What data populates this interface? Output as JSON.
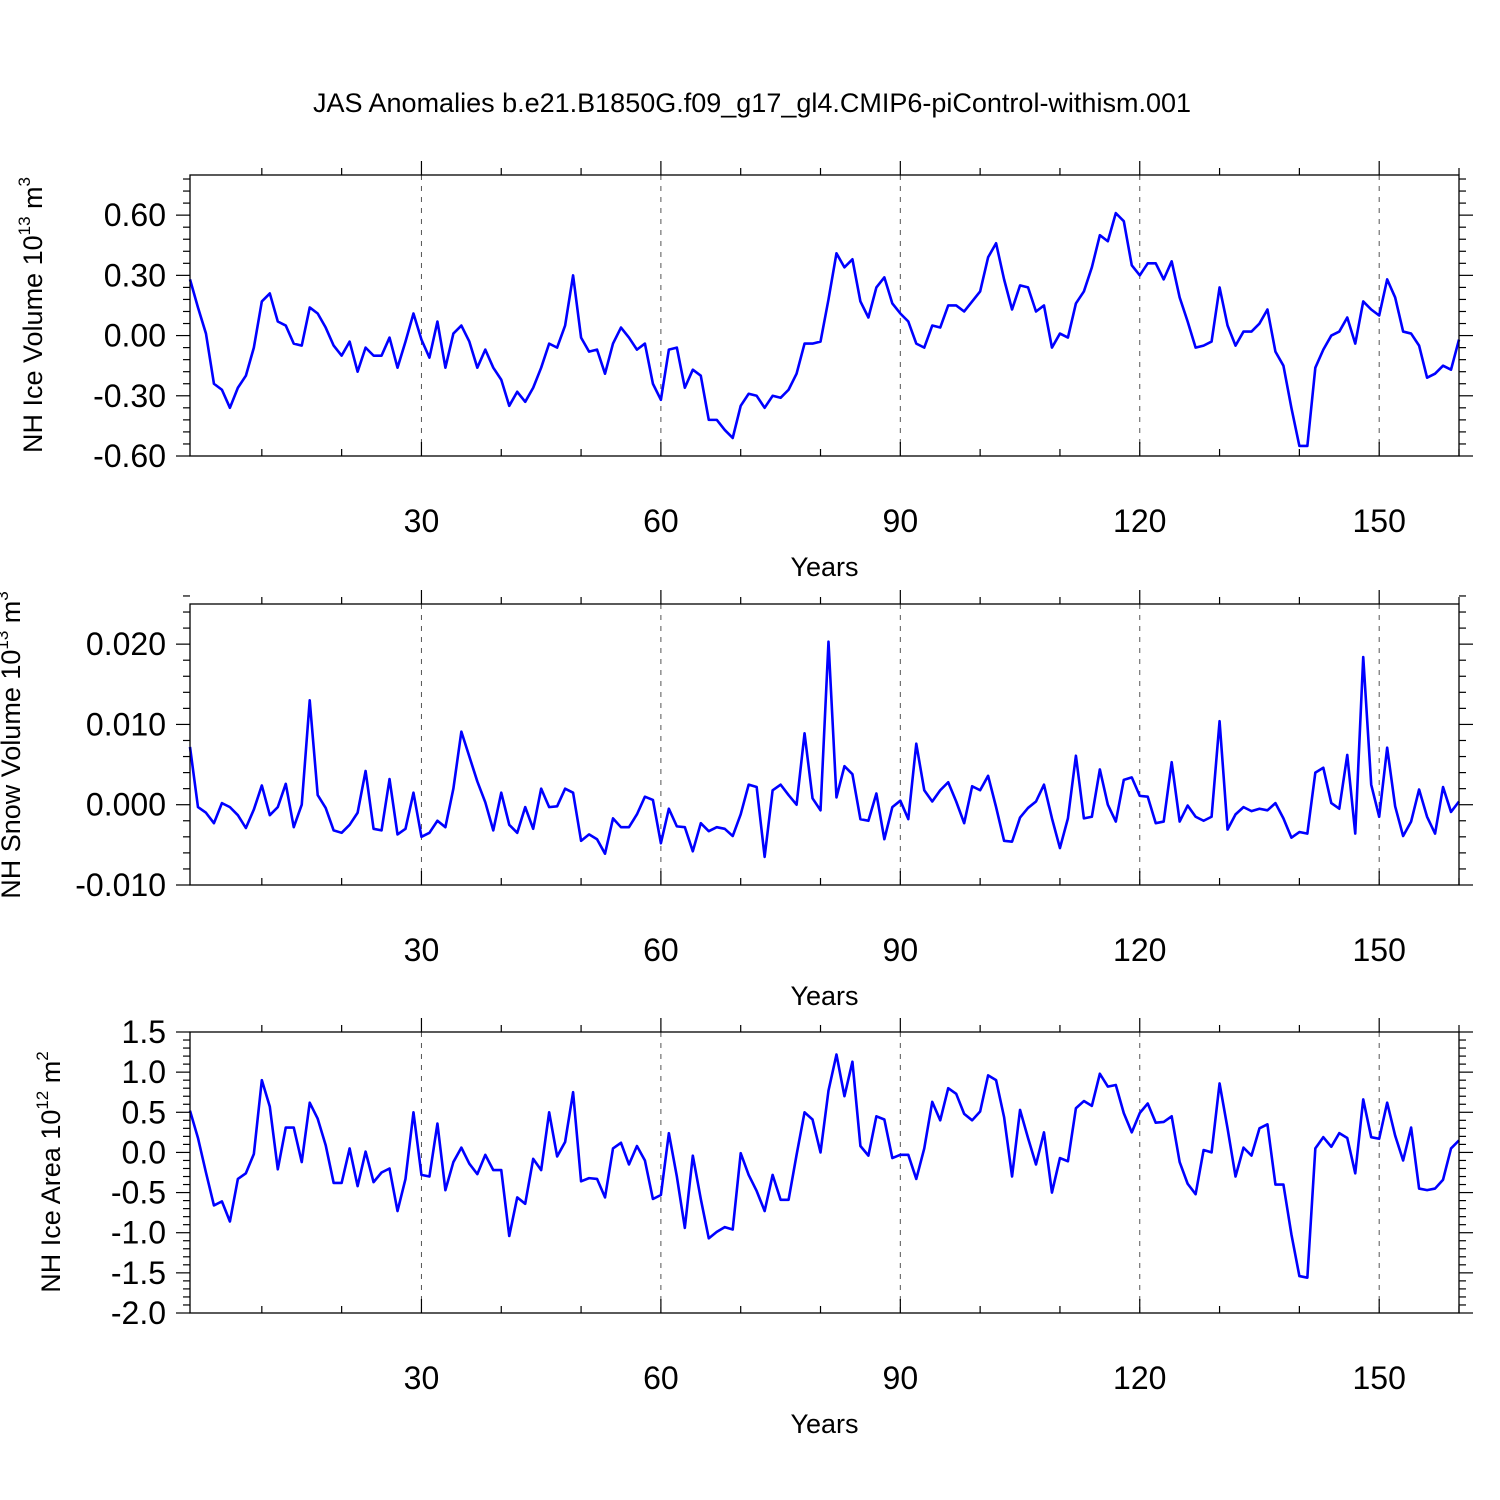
{
  "chart_data": [
    {
      "type": "line",
      "title": "JAS Anomalies b.e21.B1850G.f09_g17_gl4.CMIP6-piControl-withism.001",
      "xlabel": "Years",
      "ylabel": "NH Ice Volume 10",
      "ylabel_exponent": "13",
      "ylabel_unit": " m",
      "ylabel_unit_exponent": "3",
      "xlim": [
        1,
        160
      ],
      "ylim": [
        -0.6,
        0.8
      ],
      "xticks": [
        30,
        60,
        90,
        120,
        150
      ],
      "xtick_labels": [
        "30",
        "60",
        "90",
        "120",
        "150"
      ],
      "yticks": [
        -0.6,
        -0.3,
        0.0,
        0.3,
        0.6
      ],
      "ytick_labels": [
        "-0.60",
        "-0.30",
        "0.00",
        "0.30",
        "0.60"
      ],
      "grid": "dashed vertical lines at major x ticks",
      "line_color": "#0000ff",
      "x_start": 1,
      "values": [
        0.28,
        0.14,
        0.01,
        -0.24,
        -0.27,
        -0.36,
        -0.26,
        -0.2,
        -0.06,
        0.17,
        0.21,
        0.07,
        0.05,
        -0.04,
        -0.05,
        0.14,
        0.11,
        0.04,
        -0.05,
        -0.1,
        -0.03,
        -0.18,
        -0.06,
        -0.1,
        -0.1,
        -0.01,
        -0.16,
        -0.03,
        0.11,
        -0.02,
        -0.11,
        0.07,
        -0.16,
        0.01,
        0.05,
        -0.03,
        -0.16,
        -0.07,
        -0.16,
        -0.22,
        -0.35,
        -0.28,
        -0.33,
        -0.26,
        -0.16,
        -0.04,
        -0.06,
        0.05,
        0.3,
        -0.01,
        -0.08,
        -0.07,
        -0.19,
        -0.04,
        0.04,
        -0.01,
        -0.07,
        -0.04,
        -0.24,
        -0.32,
        -0.07,
        -0.06,
        -0.26,
        -0.17,
        -0.2,
        -0.42,
        -0.42,
        -0.47,
        -0.51,
        -0.35,
        -0.29,
        -0.3,
        -0.36,
        -0.3,
        -0.31,
        -0.27,
        -0.19,
        -0.04,
        -0.04,
        -0.03,
        0.18,
        0.41,
        0.34,
        0.38,
        0.17,
        0.09,
        0.24,
        0.29,
        0.16,
        0.11,
        0.07,
        -0.04,
        -0.06,
        0.05,
        0.04,
        0.15,
        0.15,
        0.12,
        0.17,
        0.22,
        0.39,
        0.46,
        0.28,
        0.13,
        0.25,
        0.24,
        0.12,
        0.15,
        -0.06,
        0.01,
        -0.01,
        0.16,
        0.22,
        0.34,
        0.5,
        0.47,
        0.61,
        0.57,
        0.35,
        0.3,
        0.36,
        0.36,
        0.28,
        0.37,
        0.19,
        0.07,
        -0.06,
        -0.05,
        -0.03,
        0.24,
        0.05,
        -0.05,
        0.02,
        0.02,
        0.06,
        0.13,
        -0.08,
        -0.15,
        -0.36,
        -0.55,
        -0.55,
        -0.16,
        -0.07,
        0.0,
        0.02,
        0.09,
        -0.04,
        0.17,
        0.13,
        0.1,
        0.28,
        0.19,
        0.02,
        0.01,
        -0.05,
        -0.21,
        -0.19,
        -0.15,
        -0.17,
        -0.02
      ]
    },
    {
      "type": "line",
      "xlabel": "Years",
      "ylabel": "NH Snow Volume 10",
      "ylabel_exponent": "13",
      "ylabel_unit": " m",
      "ylabel_unit_exponent": "3",
      "xlim": [
        1,
        160
      ],
      "ylim": [
        -0.01,
        0.025
      ],
      "xticks": [
        30,
        60,
        90,
        120,
        150
      ],
      "xtick_labels": [
        "30",
        "60",
        "90",
        "120",
        "150"
      ],
      "yticks": [
        -0.01,
        0.0,
        0.01,
        0.02
      ],
      "ytick_labels": [
        "-0.010",
        "0.000",
        "0.010",
        "0.020"
      ],
      "grid": "dashed vertical lines at major x ticks",
      "line_color": "#0000ff",
      "x_start": 1,
      "values": [
        0.0072,
        -0.0003,
        -0.001,
        -0.0023,
        0.0002,
        -0.0003,
        -0.0013,
        -0.0029,
        -0.0006,
        0.0024,
        -0.0013,
        -0.0003,
        0.0026,
        -0.0028,
        0.0,
        0.013,
        0.0012,
        -0.0004,
        -0.0032,
        -0.0035,
        -0.0025,
        -0.001,
        0.0042,
        -0.003,
        -0.0032,
        0.0032,
        -0.0037,
        -0.003,
        0.0015,
        -0.004,
        -0.0035,
        -0.002,
        -0.0028,
        0.002,
        0.0091,
        0.006,
        0.0029,
        0.0003,
        -0.0032,
        0.0015,
        -0.0025,
        -0.0035,
        -0.0003,
        -0.003,
        0.002,
        -0.0003,
        -0.0002,
        0.002,
        0.0015,
        -0.0045,
        -0.0037,
        -0.0043,
        -0.0061,
        -0.0017,
        -0.0028,
        -0.0028,
        -0.0012,
        0.001,
        0.0006,
        -0.0048,
        -0.0005,
        -0.0027,
        -0.0028,
        -0.0058,
        -0.0023,
        -0.0033,
        -0.0028,
        -0.003,
        -0.0039,
        -0.0012,
        0.0025,
        0.0022,
        -0.0065,
        0.0018,
        0.0025,
        0.0012,
        0.0,
        0.0089,
        0.0008,
        -0.0007,
        0.0203,
        0.0009,
        0.0048,
        0.0038,
        -0.0018,
        -0.002,
        0.0014,
        -0.0043,
        -0.0003,
        0.0005,
        -0.0018,
        0.0076,
        0.0018,
        0.0004,
        0.0018,
        0.0028,
        0.0004,
        -0.0023,
        0.0023,
        0.0018,
        0.0036,
        -0.0003,
        -0.0045,
        -0.0046,
        -0.0016,
        -0.0004,
        0.0004,
        0.0025,
        -0.0017,
        -0.0054,
        -0.0017,
        0.0061,
        -0.0017,
        -0.0015,
        0.0044,
        0.0,
        -0.0021,
        0.0031,
        0.0034,
        0.0011,
        0.001,
        -0.0023,
        -0.0021,
        0.0053,
        -0.0021,
        -0.0001,
        -0.0015,
        -0.002,
        -0.0015,
        0.0104,
        -0.0031,
        -0.0012,
        -0.0003,
        -0.0008,
        -0.0005,
        -0.0007,
        0.0002,
        -0.0017,
        -0.0041,
        -0.0034,
        -0.0036,
        0.004,
        0.0046,
        0.0002,
        -0.0005,
        0.0062,
        -0.0036,
        0.0184,
        0.0025,
        -0.0015,
        0.0071,
        -0.0002,
        -0.0039,
        -0.0021,
        0.0019,
        -0.0015,
        -0.0036,
        0.0022,
        -0.0009,
        0.0004
      ]
    },
    {
      "type": "line",
      "xlabel": "Years",
      "ylabel": "NH Ice Area 10",
      "ylabel_exponent": "12",
      "ylabel_unit": " m",
      "ylabel_unit_exponent": "2",
      "xlim": [
        1,
        160
      ],
      "ylim": [
        -2.0,
        1.5
      ],
      "xticks": [
        30,
        60,
        90,
        120,
        150
      ],
      "xtick_labels": [
        "30",
        "60",
        "90",
        "120",
        "150"
      ],
      "yticks": [
        -2.0,
        -1.5,
        -1.0,
        -0.5,
        0.0,
        0.5,
        1.0,
        1.5
      ],
      "ytick_labels": [
        "-2.0",
        "-1.5",
        "-1.0",
        "-0.5",
        "0.0",
        "0.5",
        "1.0",
        "1.5"
      ],
      "grid": "dashed vertical lines at major x ticks",
      "line_color": "#0000ff",
      "x_start": 1,
      "values": [
        0.52,
        0.18,
        -0.25,
        -0.66,
        -0.61,
        -0.86,
        -0.33,
        -0.26,
        -0.02,
        0.9,
        0.57,
        -0.21,
        0.31,
        0.31,
        -0.12,
        0.62,
        0.42,
        0.09,
        -0.38,
        -0.38,
        0.05,
        -0.42,
        0.01,
        -0.37,
        -0.25,
        -0.2,
        -0.73,
        -0.33,
        0.5,
        -0.28,
        -0.3,
        0.36,
        -0.47,
        -0.12,
        0.06,
        -0.14,
        -0.27,
        -0.03,
        -0.22,
        -0.22,
        -1.04,
        -0.56,
        -0.64,
        -0.08,
        -0.22,
        0.5,
        -0.05,
        0.13,
        0.75,
        -0.36,
        -0.32,
        -0.33,
        -0.56,
        0.05,
        0.12,
        -0.15,
        0.08,
        -0.1,
        -0.58,
        -0.53,
        0.24,
        -0.3,
        -0.94,
        -0.04,
        -0.58,
        -1.07,
        -0.99,
        -0.93,
        -0.96,
        -0.01,
        -0.28,
        -0.48,
        -0.73,
        -0.28,
        -0.59,
        -0.59,
        -0.03,
        0.5,
        0.41,
        0.0,
        0.77,
        1.22,
        0.7,
        1.13,
        0.08,
        -0.04,
        0.45,
        0.41,
        -0.07,
        -0.03,
        -0.03,
        -0.33,
        0.05,
        0.63,
        0.4,
        0.8,
        0.73,
        0.48,
        0.4,
        0.51,
        0.96,
        0.9,
        0.44,
        -0.3,
        0.53,
        0.18,
        -0.15,
        0.25,
        -0.5,
        -0.07,
        -0.11,
        0.55,
        0.64,
        0.58,
        0.98,
        0.82,
        0.84,
        0.49,
        0.25,
        0.49,
        0.61,
        0.37,
        0.38,
        0.45,
        -0.12,
        -0.39,
        -0.52,
        0.03,
        0.0,
        0.86,
        0.3,
        -0.3,
        0.06,
        -0.04,
        0.3,
        0.35,
        -0.4,
        -0.4,
        -1.02,
        -1.54,
        -1.56,
        0.05,
        0.19,
        0.07,
        0.24,
        0.18,
        -0.26,
        0.66,
        0.19,
        0.17,
        0.62,
        0.21,
        -0.1,
        0.31,
        -0.45,
        -0.47,
        -0.45,
        -0.34,
        0.05,
        0.15
      ]
    }
  ]
}
